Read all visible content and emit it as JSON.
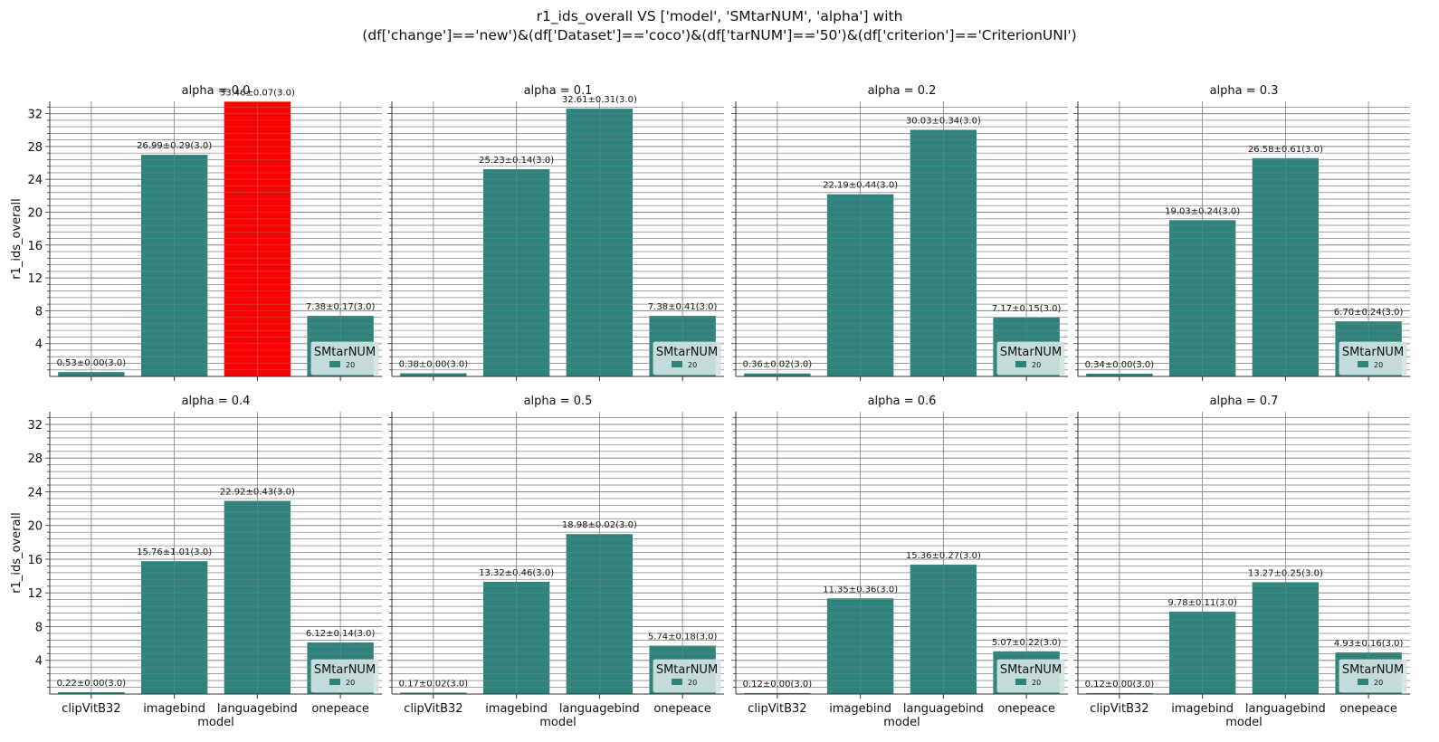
{
  "figure": {
    "title_line1": "r1_ids_overall VS ['model', 'SMtarNUM', 'alpha'] with",
    "title_line2": "(df['change']=='new')&(df['Dataset']=='coco')&(df['tarNUM']=='50')&(df['criterion']=='CriterionUNI')"
  },
  "colors": {
    "bar": "#2e847c",
    "highlight": "#ff0000",
    "grid": "#888888",
    "legend_bg": "#d5e6e3"
  },
  "chart_data": {
    "type": "bar",
    "xlabel": "model",
    "ylabel": "r1_ids_overall",
    "categories": [
      "clipVitB32",
      "imagebind",
      "languagebind",
      "onepeace"
    ],
    "yticks": [
      4,
      8,
      12,
      16,
      20,
      24,
      28,
      32
    ],
    "ylim": [
      0,
      33.5
    ],
    "grid": true,
    "legend": {
      "title": "SMtarNUM",
      "entries": [
        "20"
      ],
      "placement": "lower-right"
    },
    "panels": [
      {
        "title": "alpha = 0.0",
        "values": [
          0.53,
          26.99,
          33.46,
          7.38
        ],
        "labels": [
          "0.53±0.00(3.0)",
          "26.99±0.29(3.0)",
          "33.46±0.07(3.0)",
          "7.38±0.17(3.0)"
        ],
        "highlight": 2
      },
      {
        "title": "alpha = 0.1",
        "values": [
          0.38,
          25.23,
          32.61,
          7.38
        ],
        "labels": [
          "0.38±0.00(3.0)",
          "25.23±0.14(3.0)",
          "32.61±0.31(3.0)",
          "7.38±0.41(3.0)"
        ],
        "highlight": -1
      },
      {
        "title": "alpha = 0.2",
        "values": [
          0.36,
          22.19,
          30.03,
          7.17
        ],
        "labels": [
          "0.36±0.02(3.0)",
          "22.19±0.44(3.0)",
          "30.03±0.34(3.0)",
          "7.17±0.15(3.0)"
        ],
        "highlight": -1
      },
      {
        "title": "alpha = 0.3",
        "values": [
          0.34,
          19.03,
          26.58,
          6.7
        ],
        "labels": [
          "0.34±0.00(3.0)",
          "19.03±0.24(3.0)",
          "26.58±0.61(3.0)",
          "6.70±0.24(3.0)"
        ],
        "highlight": -1
      },
      {
        "title": "alpha = 0.4",
        "values": [
          0.22,
          15.76,
          22.92,
          6.12
        ],
        "labels": [
          "0.22±0.00(3.0)",
          "15.76±1.01(3.0)",
          "22.92±0.43(3.0)",
          "6.12±0.14(3.0)"
        ],
        "highlight": -1
      },
      {
        "title": "alpha = 0.5",
        "values": [
          0.17,
          13.32,
          18.98,
          5.74
        ],
        "labels": [
          "0.17±0.02(3.0)",
          "13.32±0.46(3.0)",
          "18.98±0.02(3.0)",
          "5.74±0.18(3.0)"
        ],
        "highlight": -1
      },
      {
        "title": "alpha = 0.6",
        "values": [
          0.12,
          11.35,
          15.36,
          5.07
        ],
        "labels": [
          "0.12±0.00(3.0)",
          "11.35±0.36(3.0)",
          "15.36±0.27(3.0)",
          "5.07±0.22(3.0)"
        ],
        "highlight": -1
      },
      {
        "title": "alpha = 0.7",
        "values": [
          0.12,
          9.78,
          13.27,
          4.93
        ],
        "labels": [
          "0.12±0.00(3.0)",
          "9.78±0.11(3.0)",
          "13.27±0.25(3.0)",
          "4.93±0.16(3.0)"
        ],
        "highlight": -1
      }
    ]
  }
}
